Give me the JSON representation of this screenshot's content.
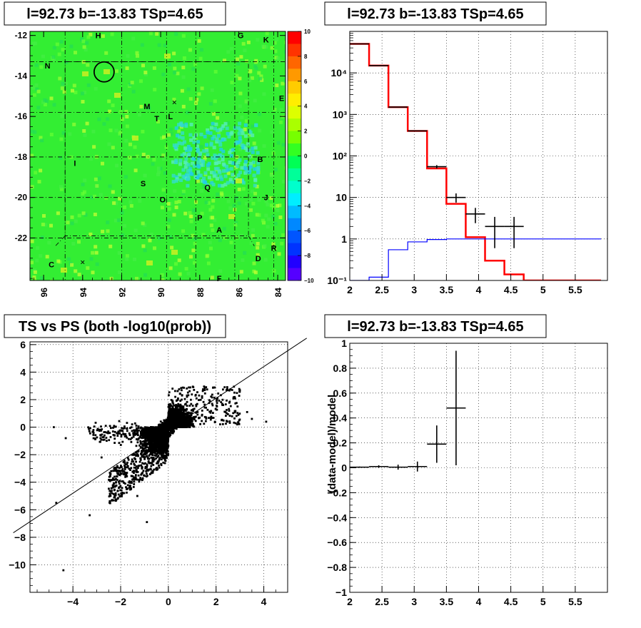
{
  "chart_data": [
    {
      "type": "heatmap",
      "title": "l=92.73 b=-13.83 TSp=4.65",
      "x_ticks": [
        "96",
        "94",
        "92",
        "90",
        "88",
        "86",
        "84"
      ],
      "y_ticks": [
        "-12",
        "-14",
        "-16",
        "-18",
        "-20",
        "-22"
      ],
      "colorbar": {
        "min": -10,
        "max": 10,
        "ticks": [
          "10",
          "8",
          "6",
          "4",
          "2",
          "0",
          "−2",
          "−4",
          "−6",
          "−8",
          "−10"
        ]
      },
      "markers": [
        {
          "label": "H",
          "l": 93.2,
          "b": -12.0
        },
        {
          "label": "G",
          "l": 85.9,
          "b": -12.0
        },
        {
          "label": "K",
          "l": 84.6,
          "b": -12.2
        },
        {
          "label": "N",
          "l": 95.8,
          "b": -13.5
        },
        {
          "label": "E",
          "l": 83.8,
          "b": -15.1
        },
        {
          "label": "M",
          "l": 90.7,
          "b": -15.5
        },
        {
          "label": "L",
          "l": 89.5,
          "b": -16.0
        },
        {
          "label": "T",
          "l": 90.2,
          "b": -16.1
        },
        {
          "label": "I",
          "l": 94.4,
          "b": -18.3
        },
        {
          "label": "B",
          "l": 84.9,
          "b": -18.1
        },
        {
          "label": "S",
          "l": 90.9,
          "b": -19.3
        },
        {
          "label": "Q",
          "l": 87.6,
          "b": -19.5
        },
        {
          "label": "J",
          "l": 84.6,
          "b": -20.0
        },
        {
          "label": "O",
          "l": 89.9,
          "b": -20.1
        },
        {
          "label": "P",
          "l": 88.0,
          "b": -21.0
        },
        {
          "label": "A",
          "l": 87.0,
          "b": -21.6
        },
        {
          "label": "R",
          "l": 84.2,
          "b": -22.5
        },
        {
          "label": "D",
          "l": 85.0,
          "b": -23.0
        },
        {
          "label": "C",
          "l": 95.6,
          "b": -23.3
        },
        {
          "label": "F",
          "l": 87.0,
          "b": -24.0
        }
      ],
      "circle": {
        "l": 92.9,
        "b": -13.8
      },
      "crosses": [
        {
          "l": 89.3,
          "b": -15.3
        },
        {
          "l": 94.0,
          "b": -23.2
        }
      ]
    },
    {
      "type": "line",
      "title": "l=92.73 b=-13.83 TSp=4.65",
      "xlim": [
        2,
        6
      ],
      "ylog": true,
      "ylim_exp": [
        -1,
        5
      ],
      "x_ticks": [
        "2",
        "2.5",
        "3",
        "3.5",
        "4",
        "4.5",
        "5",
        "5.5"
      ],
      "y_ticks": [
        "10⁻¹",
        "1",
        "10",
        "10²",
        "10³",
        "10⁴"
      ],
      "series": [
        {
          "color": "#ff0000",
          "edges": [
            2,
            2.3,
            2.6,
            2.9,
            3.2,
            3.5,
            3.8,
            4.1,
            4.4,
            4.7,
            5.0,
            5.3,
            5.6,
            5.9
          ],
          "values": [
            50000,
            15000,
            1500,
            400,
            50,
            7,
            1.1,
            0.3,
            0.14,
            0.1,
            0.1,
            0.1,
            0.1
          ]
        },
        {
          "color": "#0000ff",
          "edges": [
            2,
            2.3,
            2.6,
            2.9,
            3.2,
            3.5,
            3.8,
            4.1,
            4.4,
            4.7,
            5.0,
            5.3,
            5.6,
            5.9
          ],
          "values": [
            0.1,
            0.12,
            0.55,
            0.85,
            0.97,
            1.0,
            1.0,
            1.0,
            1.0,
            1.0,
            1.0,
            1.0,
            1.0
          ]
        },
        {
          "color": "#000000",
          "points": [
            {
              "x": 2.15,
              "y": 50000
            },
            {
              "x": 2.45,
              "y": 15000
            },
            {
              "x": 2.75,
              "y": 1500
            },
            {
              "x": 3.05,
              "y": 400
            },
            {
              "x": 3.35,
              "y": 55,
              "err": 5
            },
            {
              "x": 3.65,
              "y": 10,
              "err": 2.5
            },
            {
              "x": 3.95,
              "y": 4,
              "err": 1.6
            },
            {
              "x": 4.25,
              "y": 2,
              "err": 1.4
            },
            {
              "x": 4.55,
              "y": 2,
              "err": 1.4
            }
          ]
        }
      ]
    },
    {
      "type": "scatter",
      "title": "TS vs PS (both -log10(prob))",
      "xlim": [
        -5.8,
        5
      ],
      "ylim": [
        -12,
        6.2
      ],
      "x_ticks": [
        -4,
        -2,
        0,
        2,
        4
      ],
      "y_ticks": [
        6,
        4,
        2,
        0,
        -2,
        -4,
        -6,
        -8,
        -10
      ],
      "fit_line": {
        "slope": 1.15,
        "intercept": -0.2
      },
      "outliers": [
        {
          "x": -4.4,
          "y": -10.4
        },
        {
          "x": -0.9,
          "y": -6.9
        },
        {
          "x": -4.8,
          "y": 0.0
        },
        {
          "x": 3.3,
          "y": 1.1
        },
        {
          "x": 4.1,
          "y": 0.4
        },
        {
          "x": -3.3,
          "y": -6.4
        },
        {
          "x": -4.7,
          "y": -5.5
        },
        {
          "x": -4.3,
          "y": -0.8
        },
        {
          "x": -2.8,
          "y": -2.2
        },
        {
          "x": 2.9,
          "y": 1.5
        },
        {
          "x": 3.5,
          "y": 0.6
        },
        {
          "x": -1.3,
          "y": -5.0
        }
      ]
    },
    {
      "type": "scatter",
      "title": "l=92.73 b=-13.83 TSp=4.65",
      "ylabel": "(data-model)/model",
      "xlim": [
        2,
        6
      ],
      "ylim": [
        -1,
        1
      ],
      "x_ticks": [
        "2",
        "2.5",
        "3",
        "3.5",
        "4",
        "4.5",
        "5",
        "5.5"
      ],
      "y_ticks": [
        "1",
        "0.8",
        "0.6",
        "0.4",
        "0.2",
        "0",
        "−0.2",
        "−0.4",
        "−0.6",
        "−0.8",
        "−1"
      ],
      "points": [
        {
          "x": 2.15,
          "y": 0.005,
          "xerr": 0.15,
          "yerr": 0.005
        },
        {
          "x": 2.45,
          "y": 0.01,
          "xerr": 0.15,
          "yerr": 0.01
        },
        {
          "x": 2.75,
          "y": 0.005,
          "xerr": 0.15,
          "yerr": 0.02
        },
        {
          "x": 3.05,
          "y": 0.01,
          "xerr": 0.15,
          "yerr": 0.04
        },
        {
          "x": 3.35,
          "y": 0.19,
          "xerr": 0.15,
          "yerr": 0.15
        },
        {
          "x": 3.65,
          "y": 0.48,
          "xerr": 0.15,
          "yerr": 0.46
        }
      ]
    }
  ]
}
